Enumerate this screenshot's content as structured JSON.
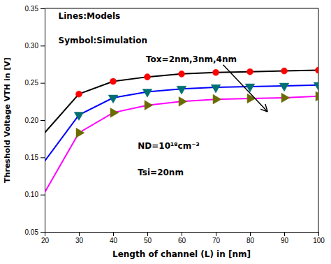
{
  "chart_data": {
    "type": "line",
    "xlabel": "Length of channel (L) in [nm]",
    "ylabel": "Threshold Voltage VTH in [V]",
    "xlim": [
      20,
      100
    ],
    "ylim": [
      0.05,
      0.35
    ],
    "xticks": [
      20,
      30,
      40,
      50,
      60,
      70,
      80,
      90,
      100
    ],
    "yticks": [
      0.05,
      {
        "value": 0.1,
        "label": "0.10"
      },
      0.15,
      {
        "value": 0.2,
        "label": "0.20"
      },
      0.25,
      {
        "value": 0.3,
        "label": "0.30"
      },
      0.35
    ],
    "grid": false,
    "series": [
      {
        "type": "line",
        "line_style": "solid",
        "color": "#000000",
        "x": [
          20,
          30,
          40,
          50,
          60,
          70,
          80,
          90,
          100
        ],
        "values": [
          0.183,
          0.235,
          0.252,
          0.258,
          0.262,
          0.264,
          0.265,
          0.266,
          0.267
        ]
      },
      {
        "type": "line",
        "line_style": "solid",
        "color": "#0000FF",
        "x": [
          20,
          30,
          40,
          50,
          60,
          70,
          80,
          90,
          100
        ],
        "values": [
          0.145,
          0.207,
          0.23,
          0.238,
          0.242,
          0.244,
          0.245,
          0.246,
          0.247
        ]
      },
      {
        "type": "line",
        "line_style": "solid",
        "color": "#FF00FF",
        "x": [
          20,
          30,
          40,
          50,
          60,
          70,
          80,
          90,
          100
        ],
        "values": [
          0.103,
          0.183,
          0.21,
          0.22,
          0.225,
          0.228,
          0.229,
          0.23,
          0.232
        ]
      },
      {
        "type": "scatter",
        "marker": "circle",
        "color": "#FF0000",
        "x": [
          30,
          40,
          50,
          60,
          70,
          80,
          90,
          100
        ],
        "values": [
          0.235,
          0.252,
          0.258,
          0.262,
          0.264,
          0.265,
          0.266,
          0.267
        ]
      },
      {
        "type": "scatter",
        "marker": "triangle-down",
        "color": "#007070",
        "x": [
          30,
          40,
          50,
          60,
          70,
          80,
          90,
          100
        ],
        "values": [
          0.207,
          0.23,
          0.238,
          0.242,
          0.244,
          0.245,
          0.246,
          0.247
        ]
      },
      {
        "type": "scatter",
        "marker": "triangle-right",
        "color": "#6B6B00",
        "x": [
          30,
          40,
          50,
          60,
          70,
          80,
          90,
          100
        ],
        "values": [
          0.183,
          0.21,
          0.22,
          0.225,
          0.228,
          0.229,
          0.23,
          0.232
        ]
      }
    ],
    "annotations": [
      {
        "text": "Lines:Models"
      },
      {
        "text": "Symbol:Simulation"
      },
      {
        "text": "Tox=2nm,3nm,4nm",
        "x": 85,
        "y": 0.212
      },
      {
        "text": "ND=10¹⁸cm⁻³"
      },
      {
        "text": "Tsi=20nm"
      }
    ]
  }
}
